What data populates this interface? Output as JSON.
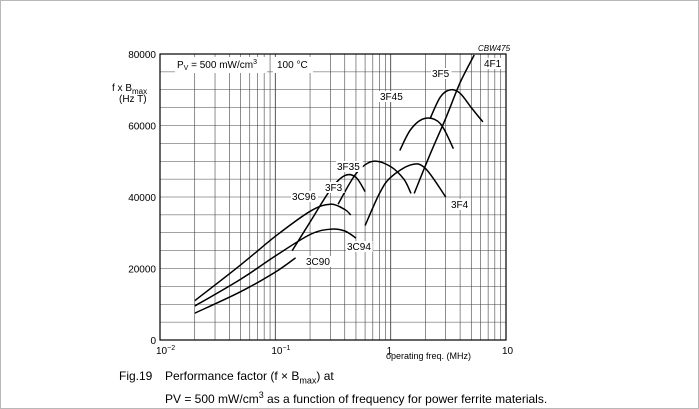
{
  "chart_data": {
    "type": "line",
    "scale_x": "log",
    "title": "Fig.19  Performance factor (f × Bmax) at PV = 500 mW/cm³ as a function of frequency for power ferrite materials.",
    "code": "CBW475",
    "conditions": {
      "pv_prefix": "P",
      "pv_sub": "V",
      "pv_value": " = 500 mW/cm",
      "pv_sup": "3",
      "temperature": "100 °C"
    },
    "ylabel_line1_prefix": "f x B",
    "ylabel_line1_sub": "max",
    "ylabel_line2": "(Hz T)",
    "xlabel": "operating freq. (MHz)",
    "xlim": [
      0.01,
      10
    ],
    "ylim": [
      0,
      80000
    ],
    "y_ticks": [
      0,
      20000,
      40000,
      60000,
      80000
    ],
    "y_tick_labels": [
      "0",
      "20000",
      "40000",
      "60000",
      "80000"
    ],
    "x_ticks": [
      0.01,
      0.1,
      1,
      10
    ],
    "x_tick_labels": [
      {
        "base": "10",
        "sup": "−2"
      },
      {
        "base": "10",
        "sup": "−1"
      },
      {
        "base": "1",
        "sup": ""
      },
      {
        "base": "10",
        "sup": ""
      }
    ],
    "series": [
      {
        "name": "3C90",
        "x": [
          0.02,
          0.05,
          0.1,
          0.15
        ],
        "y": [
          7500,
          13500,
          19000,
          23000
        ]
      },
      {
        "name": "3C94",
        "x": [
          0.02,
          0.05,
          0.1,
          0.2,
          0.3,
          0.4,
          0.5
        ],
        "y": [
          9500,
          17000,
          23500,
          29500,
          31000,
          30500,
          28500
        ]
      },
      {
        "name": "3C96",
        "x": [
          0.02,
          0.05,
          0.1,
          0.2,
          0.3,
          0.4,
          0.45
        ],
        "y": [
          11000,
          21000,
          29000,
          36000,
          38000,
          36500,
          35000
        ]
      },
      {
        "name": "3F3",
        "x": [
          0.14,
          0.2,
          0.3,
          0.4,
          0.5,
          0.6
        ],
        "y": [
          25000,
          33000,
          42000,
          46000,
          45500,
          41500
        ]
      },
      {
        "name": "3F35",
        "x": [
          0.35,
          0.5,
          0.7,
          1.0,
          1.3,
          1.5
        ],
        "y": [
          38000,
          46500,
          50000,
          48500,
          45000,
          41000
        ]
      },
      {
        "name": "3F4",
        "x": [
          0.6,
          0.8,
          1.0,
          1.5,
          2.0,
          3.0
        ],
        "y": [
          32000,
          41000,
          45500,
          49000,
          48000,
          40000
        ]
      },
      {
        "name": "3F45",
        "x": [
          1.2,
          1.5,
          2.0,
          2.7,
          3.5
        ],
        "y": [
          53000,
          59000,
          62000,
          60500,
          53500
        ]
      },
      {
        "name": "3F5",
        "x": [
          2.2,
          2.7,
          3.3,
          4.0,
          5.0,
          6.3
        ],
        "y": [
          62000,
          68000,
          70000,
          69000,
          65000,
          61000
        ]
      },
      {
        "name": "4F1",
        "x": [
          1.6,
          2.2,
          3.0,
          4.0,
          5.3
        ],
        "y": [
          41000,
          52000,
          62000,
          72000,
          81500
        ]
      }
    ]
  },
  "caption": {
    "label": "Fig.19",
    "line1_text": "Performance factor (f × B",
    "line1_sub": "max",
    "line1_end": ") at",
    "line2_text": "PV = 500 mW/cm",
    "line2_sup": "3",
    "line2_end": " as a function of frequency for power ferrite materials."
  }
}
